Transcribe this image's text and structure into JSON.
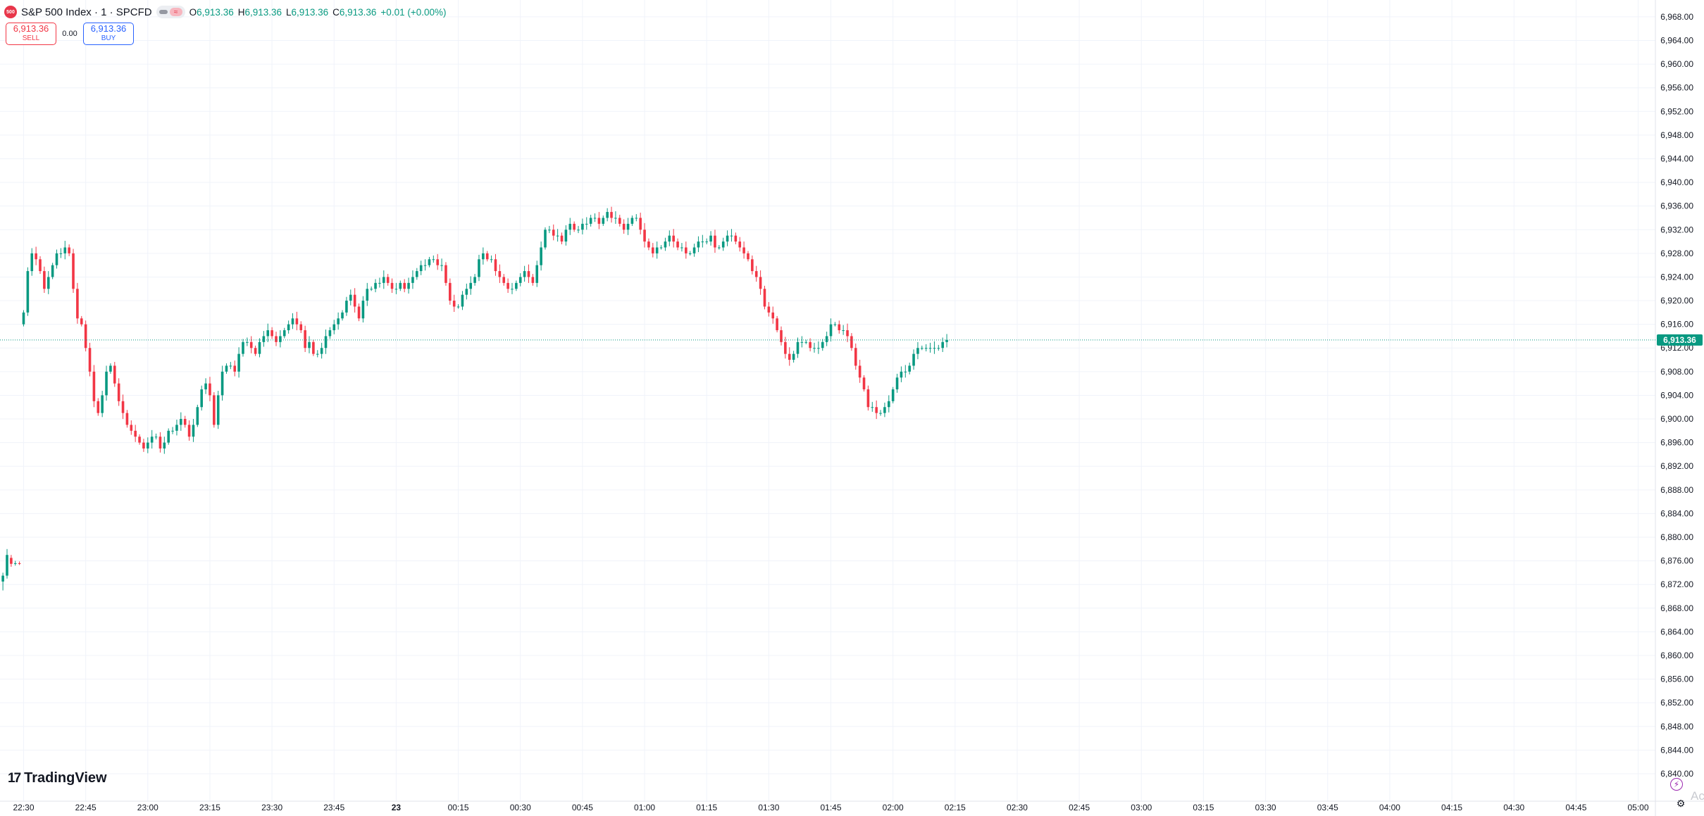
{
  "header": {
    "logo_text": "500",
    "symbol_title": "S&P 500 Index · 1 · SPCFD",
    "pill_glyph": "≈",
    "ohlc": {
      "o_label": "O",
      "o_value": "6,913.36",
      "h_label": "H",
      "h_value": "6,913.36",
      "l_label": "L",
      "l_value": "6,913.36",
      "c_label": "C",
      "c_value": "6,913.36",
      "change": "+0.01 (+0.00%)"
    }
  },
  "trade": {
    "sell_price": "6,913.36",
    "sell_label": "SELL",
    "spread": "0.00",
    "buy_price": "6,913.36",
    "buy_label": "BUY"
  },
  "branding": {
    "mark": "17",
    "name": "TradingView",
    "watermark": "Activ"
  },
  "icons": {
    "logo": "sp500-logo-icon",
    "lightning": "lightning-icon",
    "settings": "gear-icon",
    "pill": "data-status-icon"
  },
  "colors": {
    "up": "#089981",
    "down": "#f23645",
    "grid": "#f0f3fa",
    "last_price_line": "#089981",
    "last_price_label_bg": "#089981",
    "axis_text": "#131722"
  },
  "chart_data": {
    "type": "candlestick",
    "symbol": "S&P 500 Index",
    "interval": "1",
    "exchange": "SPCFD",
    "ylim": [
      6838,
      6970
    ],
    "y_ticks": [
      "6,968.00",
      "6,964.00",
      "6,960.00",
      "6,956.00",
      "6,952.00",
      "6,948.00",
      "6,944.00",
      "6,940.00",
      "6,936.00",
      "6,932.00",
      "6,928.00",
      "6,924.00",
      "6,920.00",
      "6,916.00",
      "6,912.00",
      "6,908.00",
      "6,904.00",
      "6,900.00",
      "6,896.00",
      "6,892.00",
      "6,888.00",
      "6,884.00",
      "6,880.00",
      "6,876.00",
      "6,872.00",
      "6,868.00",
      "6,864.00",
      "6,860.00",
      "6,856.00",
      "6,852.00",
      "6,848.00",
      "6,844.00",
      "6,840.00"
    ],
    "y_tick_values": [
      6968,
      6964,
      6960,
      6956,
      6952,
      6948,
      6944,
      6940,
      6936,
      6932,
      6928,
      6924,
      6920,
      6916,
      6912,
      6908,
      6904,
      6900,
      6896,
      6892,
      6888,
      6884,
      6880,
      6876,
      6872,
      6868,
      6864,
      6860,
      6856,
      6852,
      6848,
      6844,
      6840
    ],
    "x_ticks": [
      "22:30",
      "22:45",
      "23:00",
      "23:15",
      "23:30",
      "23:45",
      "23",
      "00:15",
      "00:30",
      "00:45",
      "01:00",
      "01:15",
      "01:30",
      "01:45",
      "02:00",
      "02:15",
      "02:30",
      "02:45",
      "03:00",
      "03:15",
      "03:30",
      "03:45",
      "04:00",
      "04:15",
      "04:30",
      "04:45",
      "05:00"
    ],
    "x_tick_minutes": [
      0,
      15,
      30,
      45,
      60,
      75,
      90,
      105,
      120,
      135,
      150,
      165,
      180,
      195,
      210,
      225,
      240,
      255,
      270,
      285,
      300,
      315,
      330,
      345,
      360,
      375,
      390
    ],
    "x_range_minutes": [
      -5,
      395
    ],
    "last_price": 6913.36,
    "last_price_label": "6,913.36",
    "pre_segment": [
      {
        "t": -5,
        "o": 6872.5,
        "h": 6874.0,
        "l": 6871.0,
        "c": 6873.5
      },
      {
        "t": -4,
        "o": 6873.5,
        "h": 6878.0,
        "l": 6873.0,
        "c": 6877.0
      },
      {
        "t": -3,
        "o": 6876.5,
        "h": 6877.0,
        "l": 6875.0,
        "c": 6875.5
      },
      {
        "t": -2,
        "o": 6875.5,
        "h": 6876.0,
        "l": 6875.2,
        "c": 6875.6
      },
      {
        "t": -1,
        "o": 6875.6,
        "h": 6875.9,
        "l": 6875.3,
        "c": 6875.5
      }
    ],
    "close_path": [
      [
        0,
        6918
      ],
      [
        1,
        6925
      ],
      [
        2,
        6928
      ],
      [
        3,
        6927
      ],
      [
        4,
        6925
      ],
      [
        5,
        6922
      ],
      [
        6,
        6924
      ],
      [
        7,
        6926
      ],
      [
        8,
        6928
      ],
      [
        9,
        6928
      ],
      [
        10,
        6929
      ],
      [
        11,
        6928
      ],
      [
        12,
        6922
      ],
      [
        13,
        6917
      ],
      [
        14,
        6916
      ],
      [
        15,
        6912
      ],
      [
        16,
        6908
      ],
      [
        17,
        6903
      ],
      [
        18,
        6901
      ],
      [
        19,
        6904
      ],
      [
        20,
        6908
      ],
      [
        21,
        6909
      ],
      [
        22,
        6906
      ],
      [
        23,
        6903
      ],
      [
        24,
        6901
      ],
      [
        25,
        6899
      ],
      [
        26,
        6898
      ],
      [
        27,
        6897
      ],
      [
        28,
        6896
      ],
      [
        29,
        6895
      ],
      [
        30,
        6896
      ],
      [
        31,
        6897
      ],
      [
        32,
        6897
      ],
      [
        33,
        6895
      ],
      [
        34,
        6896
      ],
      [
        35,
        6898
      ],
      [
        36,
        6898
      ],
      [
        37,
        6899
      ],
      [
        38,
        6900
      ],
      [
        39,
        6899
      ],
      [
        40,
        6897
      ],
      [
        41,
        6899
      ],
      [
        42,
        6902
      ],
      [
        43,
        6905
      ],
      [
        44,
        6906
      ],
      [
        45,
        6904
      ],
      [
        46,
        6899
      ],
      [
        47,
        6904
      ],
      [
        48,
        6908
      ],
      [
        49,
        6909
      ],
      [
        50,
        6909
      ],
      [
        51,
        6908
      ],
      [
        52,
        6911
      ],
      [
        53,
        6913
      ],
      [
        54,
        6913
      ],
      [
        55,
        6912
      ],
      [
        56,
        6911
      ],
      [
        57,
        6913
      ],
      [
        58,
        6914
      ],
      [
        59,
        6915
      ],
      [
        60,
        6914
      ],
      [
        61,
        6913
      ],
      [
        62,
        6914
      ],
      [
        63,
        6915
      ],
      [
        64,
        6916
      ],
      [
        65,
        6917
      ],
      [
        66,
        6916
      ],
      [
        67,
        6915
      ],
      [
        68,
        6912
      ],
      [
        69,
        6913
      ],
      [
        70,
        6911
      ],
      [
        71,
        6911
      ],
      [
        72,
        6912
      ],
      [
        73,
        6914
      ],
      [
        74,
        6915
      ],
      [
        75,
        6916
      ],
      [
        76,
        6917
      ],
      [
        77,
        6918
      ],
      [
        78,
        6920
      ],
      [
        79,
        6921
      ],
      [
        80,
        6919
      ],
      [
        81,
        6917
      ],
      [
        82,
        6920
      ],
      [
        83,
        6922
      ],
      [
        84,
        6922
      ],
      [
        85,
        6923
      ],
      [
        86,
        6923
      ],
      [
        87,
        6924
      ],
      [
        88,
        6923
      ],
      [
        89,
        6922
      ],
      [
        90,
        6922
      ],
      [
        91,
        6923
      ],
      [
        92,
        6922
      ],
      [
        93,
        6923
      ],
      [
        94,
        6924
      ],
      [
        95,
        6925
      ],
      [
        96,
        6926
      ],
      [
        97,
        6926
      ],
      [
        98,
        6927
      ],
      [
        99,
        6927
      ],
      [
        100,
        6926
      ],
      [
        101,
        6926
      ],
      [
        102,
        6923
      ],
      [
        103,
        6920
      ],
      [
        104,
        6919
      ],
      [
        105,
        6919
      ],
      [
        106,
        6921
      ],
      [
        107,
        6922
      ],
      [
        108,
        6923
      ],
      [
        109,
        6924
      ],
      [
        110,
        6927
      ],
      [
        111,
        6928
      ],
      [
        112,
        6927
      ],
      [
        113,
        6927
      ],
      [
        114,
        6925
      ],
      [
        115,
        6924
      ],
      [
        116,
        6923
      ],
      [
        117,
        6922
      ],
      [
        118,
        6922
      ],
      [
        119,
        6923
      ],
      [
        120,
        6924
      ],
      [
        121,
        6925
      ],
      [
        122,
        6924
      ],
      [
        123,
        6923
      ],
      [
        124,
        6926
      ],
      [
        125,
        6929
      ],
      [
        126,
        6932
      ],
      [
        127,
        6932
      ],
      [
        128,
        6931
      ],
      [
        129,
        6931
      ],
      [
        130,
        6930
      ],
      [
        131,
        6932
      ],
      [
        132,
        6933
      ],
      [
        133,
        6932
      ],
      [
        134,
        6932
      ],
      [
        135,
        6933
      ],
      [
        136,
        6933
      ],
      [
        137,
        6934
      ],
      [
        138,
        6934
      ],
      [
        139,
        6933
      ],
      [
        140,
        6934
      ],
      [
        141,
        6935
      ],
      [
        142,
        6934
      ],
      [
        143,
        6934
      ],
      [
        144,
        6933
      ],
      [
        145,
        6932
      ],
      [
        146,
        6933
      ],
      [
        147,
        6934
      ],
      [
        148,
        6934
      ],
      [
        149,
        6932
      ],
      [
        150,
        6930
      ],
      [
        151,
        6929
      ],
      [
        152,
        6928
      ],
      [
        153,
        6929
      ],
      [
        154,
        6929
      ],
      [
        155,
        6930
      ],
      [
        156,
        6931
      ],
      [
        157,
        6930
      ],
      [
        158,
        6929
      ],
      [
        159,
        6929
      ],
      [
        160,
        6928
      ],
      [
        161,
        6928
      ],
      [
        162,
        6929
      ],
      [
        163,
        6930
      ],
      [
        164,
        6930
      ],
      [
        165,
        6930
      ],
      [
        166,
        6931
      ],
      [
        167,
        6929
      ],
      [
        168,
        6929
      ],
      [
        169,
        6930
      ],
      [
        170,
        6931
      ],
      [
        171,
        6931
      ],
      [
        172,
        6930
      ],
      [
        173,
        6929
      ],
      [
        174,
        6928
      ],
      [
        175,
        6927
      ],
      [
        176,
        6925
      ],
      [
        177,
        6924
      ],
      [
        178,
        6922
      ],
      [
        179,
        6919
      ],
      [
        180,
        6918
      ],
      [
        181,
        6917
      ],
      [
        182,
        6915
      ],
      [
        183,
        6913
      ],
      [
        184,
        6911
      ],
      [
        185,
        6910
      ],
      [
        186,
        6911
      ],
      [
        187,
        6913
      ],
      [
        188,
        6913
      ],
      [
        189,
        6913
      ],
      [
        190,
        6912
      ],
      [
        191,
        6912
      ],
      [
        192,
        6912
      ],
      [
        193,
        6913
      ],
      [
        194,
        6914
      ],
      [
        195,
        6916
      ],
      [
        196,
        6916
      ],
      [
        197,
        6915
      ],
      [
        198,
        6915
      ],
      [
        199,
        6914
      ],
      [
        200,
        6912
      ],
      [
        201,
        6909
      ],
      [
        202,
        6907
      ],
      [
        203,
        6905
      ],
      [
        204,
        6902
      ],
      [
        205,
        6902
      ],
      [
        206,
        6901
      ],
      [
        207,
        6901
      ],
      [
        208,
        6902
      ],
      [
        209,
        6903
      ],
      [
        210,
        6905
      ],
      [
        211,
        6907
      ],
      [
        212,
        6908
      ],
      [
        213,
        6908
      ],
      [
        214,
        6909
      ],
      [
        215,
        6911
      ],
      [
        216,
        6912
      ],
      [
        217,
        6912
      ],
      [
        218,
        6912
      ],
      [
        219,
        6912
      ],
      [
        220,
        6912
      ],
      [
        221,
        6912
      ],
      [
        222,
        6913
      ],
      [
        223,
        6913.36
      ]
    ]
  }
}
